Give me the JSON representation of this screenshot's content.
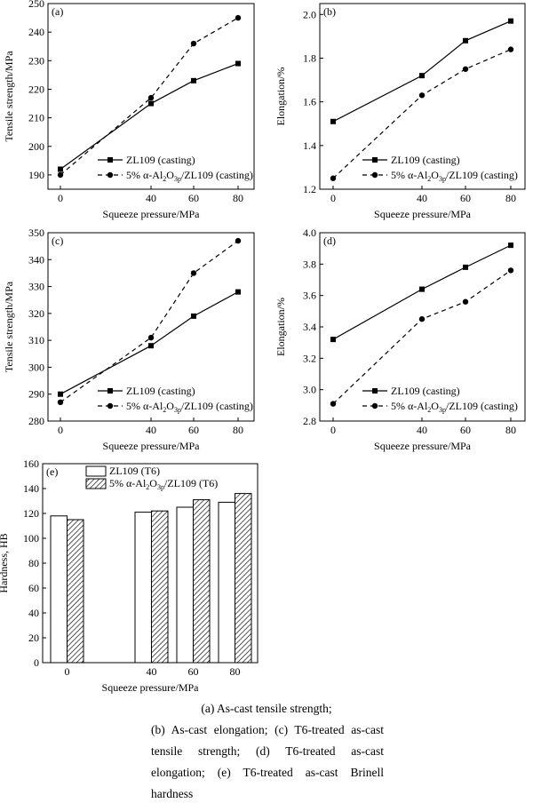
{
  "chart_data": [
    {
      "id": "a",
      "type": "line",
      "panel_label": "(a)",
      "xlabel": "Squeeze pressure/MPa",
      "ylabel": "Tensile strength/MPa",
      "x": [
        0,
        40,
        60,
        80
      ],
      "xticks": [
        "0",
        "40",
        "60",
        "80"
      ],
      "ylim": [
        185,
        250
      ],
      "yticks": [
        190,
        200,
        210,
        220,
        230,
        240,
        250
      ],
      "legend": "bottom-right",
      "series": [
        {
          "name": "ZL109 (casting)",
          "style": "solid",
          "marker": "square",
          "values": [
            192,
            215,
            223,
            229
          ]
        },
        {
          "name": "5% α-Al2O3p/ZL109 (casting)",
          "style": "dashed",
          "marker": "circle",
          "values": [
            190,
            217,
            236,
            245
          ]
        }
      ]
    },
    {
      "id": "b",
      "type": "line",
      "panel_label": "(b)",
      "xlabel": "Squeeze pressure/MPa",
      "ylabel": "Elongation/%",
      "x": [
        0,
        40,
        60,
        80
      ],
      "xticks": [
        "0",
        "40",
        "60",
        "80"
      ],
      "ylim": [
        1.2,
        2.05
      ],
      "yticks": [
        "1.2",
        "1.4",
        "1.6",
        "1.8",
        "2.0"
      ],
      "legend": "bottom-right",
      "series": [
        {
          "name": "ZL109 (casting)",
          "style": "solid",
          "marker": "square",
          "values": [
            1.51,
            1.72,
            1.88,
            1.97
          ]
        },
        {
          "name": "5% α-Al2O3p/ZL109 (casting)",
          "style": "dashed",
          "marker": "circle",
          "values": [
            1.25,
            1.63,
            1.75,
            1.84
          ]
        }
      ]
    },
    {
      "id": "c",
      "type": "line",
      "panel_label": "(c)",
      "xlabel": "Squeeze pressure/MPa",
      "ylabel": "Tensile strength/MPa",
      "x": [
        0,
        40,
        60,
        80
      ],
      "xticks": [
        "0",
        "40",
        "60",
        "80"
      ],
      "ylim": [
        280,
        350
      ],
      "yticks": [
        280,
        290,
        300,
        310,
        320,
        330,
        340,
        350
      ],
      "legend": "bottom-right",
      "series": [
        {
          "name": "ZL109 (casting)",
          "style": "solid",
          "marker": "square",
          "values": [
            290,
            308,
            319,
            328
          ]
        },
        {
          "name": "5% α-Al2O3p/ZL109 (casting)",
          "style": "dashed",
          "marker": "circle",
          "values": [
            287,
            311,
            335,
            347
          ]
        }
      ]
    },
    {
      "id": "d",
      "type": "line",
      "panel_label": "(d)",
      "xlabel": "Squeeze pressure/MPa",
      "ylabel": "Elongation/%",
      "x": [
        0,
        40,
        60,
        80
      ],
      "xticks": [
        "0",
        "40",
        "60",
        "80"
      ],
      "ylim": [
        2.8,
        4.0
      ],
      "yticks": [
        "2.8",
        "3.0",
        "3.2",
        "3.4",
        "3.6",
        "3.8",
        "4.0"
      ],
      "legend": "bottom-right",
      "series": [
        {
          "name": "ZL109 (casting)",
          "style": "solid",
          "marker": "square",
          "values": [
            3.32,
            3.64,
            3.78,
            3.92
          ]
        },
        {
          "name": "5% α-Al2O3p/ZL109 (casting)",
          "style": "dashed",
          "marker": "circle",
          "values": [
            2.91,
            3.45,
            3.56,
            3.76
          ]
        }
      ]
    },
    {
      "id": "e",
      "type": "bar",
      "panel_label": "(e)",
      "xlabel": "Squeeze pressure/MPa",
      "ylabel": "Hardness, HB",
      "categories": [
        "0",
        "40",
        "60",
        "80"
      ],
      "ylim": [
        0,
        160
      ],
      "yticks": [
        0,
        20,
        40,
        60,
        80,
        100,
        120,
        140,
        160
      ],
      "legend": "top-left",
      "series": [
        {
          "name": "ZL109 (T6)",
          "fill": "white",
          "values": [
            118,
            121,
            125,
            129
          ]
        },
        {
          "name": "5% α-Al2O3p/ZL109 (T6)",
          "fill": "hatched",
          "values": [
            115,
            122,
            131,
            136
          ]
        }
      ]
    }
  ],
  "caption": {
    "line1": "(a) As-cast tensile strength;",
    "rest": "(b) As-cast elongation; (c) T6-treated as-cast tensile strength; (d) T6-treated as-cast elongation; (e) T6-treated as-cast Brinell hardness"
  }
}
